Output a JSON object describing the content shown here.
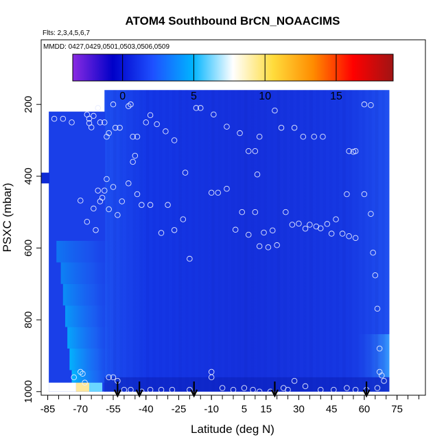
{
  "chart_data": {
    "type": "heatmap",
    "title": "ATOM4 Southbound BrCN_NOAACIMS",
    "subtitle_flights": "Flts: 2,3,4,5,6,7",
    "subtitle_dates": "MMDD: 0427,0429,0501,0503,0506,0509",
    "xlabel": "Latitude (deg N)",
    "ylabel": "PSXC (mbar)",
    "xlim": [
      -88,
      88
    ],
    "ylim": [
      1010,
      20
    ],
    "x_ticks": [
      -85,
      -70,
      -55,
      -40,
      -25,
      -10,
      5,
      15,
      30,
      45,
      60,
      75
    ],
    "x_tick_labels": [
      "-85",
      "-70",
      "-55",
      "-40",
      "-25",
      "-10",
      "5",
      "15",
      "30",
      "45",
      "60",
      "75"
    ],
    "x_minor_step": 5,
    "y_ticks": [
      200,
      400,
      600,
      800,
      1000
    ],
    "y_tick_labels": [
      "200",
      "400",
      "600",
      "800",
      "1000"
    ],
    "colorbar": {
      "range": [
        -3.5,
        19
      ],
      "ticks": [
        0,
        5,
        10,
        15
      ],
      "tick_labels": [
        "0",
        "5",
        "10",
        "15"
      ],
      "colors": [
        "#8a2be2",
        "#0000c8",
        "#1e50ff",
        "#00b4ff",
        "#ffffff",
        "#ffdc3c",
        "#ff8c00",
        "#ff0000",
        "#a01414"
      ]
    },
    "bottom_arrows_lat": [
      -53,
      -43,
      -18,
      19,
      61
    ],
    "points": [
      [
        -82,
        240
      ],
      [
        -78,
        240
      ],
      [
        -74,
        250
      ],
      [
        -67,
        228
      ],
      [
        -66,
        240
      ],
      [
        -66,
        252
      ],
      [
        -65,
        264
      ],
      [
        -64,
        232
      ],
      [
        -62,
        210
      ],
      [
        -61,
        250
      ],
      [
        -59,
        250
      ],
      [
        -58,
        290
      ],
      [
        -57,
        280
      ],
      [
        -55,
        200
      ],
      [
        -54,
        265
      ],
      [
        -52,
        265
      ],
      [
        -48,
        205
      ],
      [
        -47,
        200
      ],
      [
        -46,
        290
      ],
      [
        -44,
        290
      ],
      [
        -40,
        250
      ],
      [
        -38,
        230
      ],
      [
        -35,
        255
      ],
      [
        -31,
        275
      ],
      [
        -27,
        300
      ],
      [
        -22,
        390
      ],
      [
        -17,
        210
      ],
      [
        -15,
        210
      ],
      [
        -9,
        228
      ],
      [
        -3,
        262
      ],
      [
        3,
        280
      ],
      [
        7,
        330
      ],
      [
        10,
        330
      ],
      [
        12,
        290
      ],
      [
        11,
        395
      ],
      [
        19,
        217
      ],
      [
        22,
        265
      ],
      [
        28,
        265
      ],
      [
        32,
        290
      ],
      [
        37,
        290
      ],
      [
        41,
        290
      ],
      [
        53,
        330
      ],
      [
        55,
        332
      ],
      [
        56,
        330
      ],
      [
        60,
        200
      ],
      [
        63,
        202
      ],
      [
        -70,
        468
      ],
      [
        -67,
        527
      ],
      [
        -64,
        490
      ],
      [
        -63,
        550
      ],
      [
        -62,
        440
      ],
      [
        -61,
        470
      ],
      [
        -60,
        460
      ],
      [
        -59,
        440
      ],
      [
        -58,
        408
      ],
      [
        -57,
        492
      ],
      [
        -55,
        430
      ],
      [
        -53,
        508
      ],
      [
        -51,
        470
      ],
      [
        -48,
        420
      ],
      [
        -46,
        360
      ],
      [
        -45,
        343
      ],
      [
        -44,
        450
      ],
      [
        -42,
        480
      ],
      [
        -38,
        480
      ],
      [
        -33,
        558
      ],
      [
        -30,
        480
      ],
      [
        -27,
        550
      ],
      [
        -23,
        520
      ],
      [
        -20,
        630
      ],
      [
        -10,
        446
      ],
      [
        -7,
        446
      ],
      [
        -3,
        435
      ],
      [
        1,
        549
      ],
      [
        4,
        500
      ],
      [
        7,
        563
      ],
      [
        10,
        500
      ],
      [
        12,
        595
      ],
      [
        14,
        557
      ],
      [
        16,
        598
      ],
      [
        18,
        551
      ],
      [
        20,
        592
      ],
      [
        24,
        500
      ],
      [
        27,
        535
      ],
      [
        30,
        532
      ],
      [
        33,
        546
      ],
      [
        35,
        535
      ],
      [
        38,
        540
      ],
      [
        40,
        545
      ],
      [
        43,
        533
      ],
      [
        45,
        560
      ],
      [
        47,
        520
      ],
      [
        50,
        560
      ],
      [
        52,
        450
      ],
      [
        53,
        567
      ],
      [
        56,
        572
      ],
      [
        60,
        450
      ],
      [
        63,
        505
      ],
      [
        64,
        613
      ],
      [
        65,
        676
      ],
      [
        66,
        769
      ],
      [
        67,
        880
      ],
      [
        -73,
        960
      ],
      [
        -70,
        945
      ],
      [
        -69,
        950
      ],
      [
        -68,
        975
      ],
      [
        -57,
        960
      ],
      [
        -55,
        960
      ],
      [
        -53,
        970
      ],
      [
        -50,
        995
      ],
      [
        -47,
        995
      ],
      [
        -42,
        1000
      ],
      [
        -38,
        995
      ],
      [
        -33,
        995
      ],
      [
        -28,
        995
      ],
      [
        -20,
        995
      ],
      [
        -10,
        945
      ],
      [
        -10,
        960
      ],
      [
        -5,
        990
      ],
      [
        0,
        995
      ],
      [
        5,
        990
      ],
      [
        9,
        995
      ],
      [
        12,
        1000
      ],
      [
        17,
        1000
      ],
      [
        23,
        990
      ],
      [
        25,
        995
      ],
      [
        28,
        970
      ],
      [
        33,
        985
      ],
      [
        40,
        995
      ],
      [
        46,
        995
      ],
      [
        52,
        990
      ],
      [
        56,
        995
      ],
      [
        61,
        995
      ],
      [
        66,
        990
      ],
      [
        67,
        945
      ],
      [
        68,
        955
      ],
      [
        69,
        970
      ]
    ]
  }
}
